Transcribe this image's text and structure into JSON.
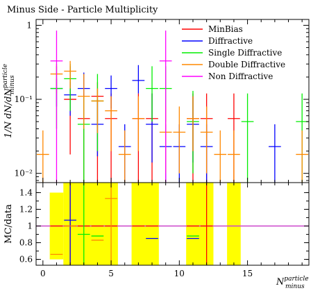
{
  "title": "Minus Side - Particle Multiplicity",
  "colors": {
    "MinBias": "#ff0000",
    "Diffractive": "#0000ff",
    "Single Diffractive": "#00ee00",
    "Double Diffractive": "#ff8800",
    "Non Diffractive": "#ff00ff",
    "band": "#ffff00",
    "reference": "#cc44cc"
  },
  "chart_data": [
    {
      "type": "scatter",
      "panel": "main",
      "ylabel": "1/N dN/dN_minus^particle",
      "ylabel_parts": {
        "main": "1/N dN/dN",
        "sup": "particle",
        "sub": "minus"
      },
      "yscale": "log",
      "xlim": [
        -0.5,
        19.5
      ],
      "ylim": [
        0.0075,
        1.2
      ],
      "yticks": [
        {
          "value": 0.01,
          "label": "10⁻²"
        },
        {
          "value": 0.1,
          "label": "10⁻¹"
        },
        {
          "value": 1,
          "label": "1"
        }
      ],
      "legend_position": "top-right",
      "series": [
        {
          "name": "MinBias",
          "points": [
            {
              "x": 2,
              "y": 0.1,
              "lo": 0.018,
              "hi": 0.28
            },
            {
              "x": 3,
              "y": 0.055,
              "lo": 0.0075,
              "hi": 0.12
            },
            {
              "x": 4,
              "y": 0.11,
              "lo": 0.0075,
              "hi": 0.17
            },
            {
              "x": 5,
              "y": 0.055,
              "lo": 0.0075,
              "hi": 0.12
            },
            {
              "x": 7,
              "y": 0.055,
              "lo": 0.0075,
              "hi": 0.12
            },
            {
              "x": 8,
              "y": 0.055,
              "lo": 0.0075,
              "hi": 0.12
            },
            {
              "x": 11,
              "y": 0.055,
              "lo": 0.0075,
              "hi": 0.12
            },
            {
              "x": 12,
              "y": 0.055,
              "lo": 0.0075,
              "hi": 0.12
            },
            {
              "x": 14,
              "y": 0.055,
              "lo": 0.0075,
              "hi": 0.12
            }
          ]
        },
        {
          "name": "Diffractive",
          "points": [
            {
              "x": 1,
              "y": 0.14,
              "lo": 0.08,
              "hi": 0.19
            },
            {
              "x": 2,
              "y": 0.115,
              "lo": 0.06,
              "hi": 0.17
            },
            {
              "x": 3,
              "y": 0.14,
              "lo": 0.04,
              "hi": 0.23
            },
            {
              "x": 4,
              "y": 0.046,
              "lo": 0.017,
              "hi": 0.1
            },
            {
              "x": 5,
              "y": 0.14,
              "lo": 0.075,
              "hi": 0.21
            },
            {
              "x": 6,
              "y": 0.023,
              "lo": 0.0075,
              "hi": 0.046
            },
            {
              "x": 7,
              "y": 0.18,
              "lo": 0.12,
              "hi": 0.29
            },
            {
              "x": 8,
              "y": 0.046,
              "lo": 0.014,
              "hi": 0.12
            },
            {
              "x": 9,
              "y": 0.023,
              "lo": 0.0075,
              "hi": 0.046
            },
            {
              "x": 10,
              "y": 0.023,
              "lo": 0.0075,
              "hi": 0.046
            },
            {
              "x": 11,
              "y": 0.046,
              "lo": 0.014,
              "hi": 0.11
            },
            {
              "x": 12,
              "y": 0.023,
              "lo": 0.0075,
              "hi": 0.046
            },
            {
              "x": 17,
              "y": 0.023,
              "lo": 0.0075,
              "hi": 0.046
            }
          ]
        },
        {
          "name": "Single Diffractive",
          "points": [
            {
              "x": 1,
              "y": 0.14,
              "lo": 0.04,
              "hi": 0.28
            },
            {
              "x": 2,
              "y": 0.19,
              "lo": 0.07,
              "hi": 0.3
            },
            {
              "x": 3,
              "y": 0.046,
              "lo": 0.0075,
              "hi": 0.11
            },
            {
              "x": 4,
              "y": 0.095,
              "lo": 0.02,
              "hi": 0.22
            },
            {
              "x": 8,
              "y": 0.14,
              "lo": 0.05,
              "hi": 0.28
            },
            {
              "x": 9,
              "y": 0.14,
              "lo": 0.05,
              "hi": 0.28
            },
            {
              "x": 11,
              "y": 0.05,
              "lo": 0.01,
              "hi": 0.13
            },
            {
              "x": 15,
              "y": 0.05,
              "lo": 0.0075,
              "hi": 0.12
            },
            {
              "x": 19,
              "y": 0.05,
              "lo": 0.0075,
              "hi": 0.12
            }
          ]
        },
        {
          "name": "Double Diffractive",
          "points": [
            {
              "x": 0,
              "y": 0.018,
              "lo": 0.0075,
              "hi": 0.038
            },
            {
              "x": 1,
              "y": 0.22,
              "lo": 0.12,
              "hi": 0.3
            },
            {
              "x": 2,
              "y": 0.24,
              "lo": 0.14,
              "hi": 0.33
            },
            {
              "x": 3,
              "y": 0.11,
              "lo": 0.04,
              "hi": 0.22
            },
            {
              "x": 4,
              "y": 0.095,
              "lo": 0.035,
              "hi": 0.14
            },
            {
              "x": 5,
              "y": 0.07,
              "lo": 0.02,
              "hi": 0.11
            },
            {
              "x": 6,
              "y": 0.018,
              "lo": 0.0075,
              "hi": 0.038
            },
            {
              "x": 7,
              "y": 0.055,
              "lo": 0.02,
              "hi": 0.11
            },
            {
              "x": 9,
              "y": 0.036,
              "lo": 0.01,
              "hi": 0.08
            },
            {
              "x": 10,
              "y": 0.036,
              "lo": 0.01,
              "hi": 0.08
            },
            {
              "x": 11,
              "y": 0.055,
              "lo": 0.02,
              "hi": 0.11
            },
            {
              "x": 12,
              "y": 0.036,
              "lo": 0.01,
              "hi": 0.08
            },
            {
              "x": 13,
              "y": 0.018,
              "lo": 0.0075,
              "hi": 0.038
            },
            {
              "x": 14,
              "y": 0.018,
              "lo": 0.0075,
              "hi": 0.038
            },
            {
              "x": 19,
              "y": 0.018,
              "lo": 0.0075,
              "hi": 0.038
            }
          ]
        },
        {
          "name": "Non Diffractive",
          "points": [
            {
              "x": 1,
              "y": 0.33,
              "lo": 0.0075,
              "hi": 0.85
            },
            {
              "x": 9,
              "y": 0.33,
              "lo": 0.0075,
              "hi": 0.85
            }
          ]
        }
      ]
    },
    {
      "type": "scatter",
      "panel": "ratio",
      "ylabel": "MC/data",
      "xlabel": "N_minus^particle",
      "xlabel_parts": {
        "main": "N",
        "sup": "particle",
        "sub": "minus"
      },
      "xlim": [
        -0.5,
        19.5
      ],
      "ylim": [
        0.53,
        1.52
      ],
      "xticks": [
        0,
        5,
        10,
        15
      ],
      "yticks": [
        0.6,
        0.8,
        1,
        1.2,
        1.4
      ],
      "reference_line": 1,
      "bands": [
        {
          "x0": 0.5,
          "x1": 1.5,
          "lo": 0.6,
          "hi": 1.4
        },
        {
          "x0": 1.5,
          "x1": 5.5,
          "lo": 0.53,
          "hi": 1.52
        },
        {
          "x0": 6.5,
          "x1": 8.5,
          "lo": 0.53,
          "hi": 1.52
        },
        {
          "x0": 10.5,
          "x1": 12.5,
          "lo": 0.53,
          "hi": 1.52
        },
        {
          "x0": 13.5,
          "x1": 14.5,
          "lo": 0.53,
          "hi": 1.52
        }
      ],
      "series": [
        {
          "name": "MinBias",
          "points": [
            {
              "x": 1,
              "y": 1.0
            },
            {
              "x": 2,
              "y": 1.0,
              "lo": 0.53,
              "hi": 1.52
            },
            {
              "x": 3,
              "y": 1.0
            },
            {
              "x": 4,
              "y": 1.0
            },
            {
              "x": 5,
              "y": 1.0
            },
            {
              "x": 7,
              "y": 1.0
            },
            {
              "x": 8,
              "y": 1.0
            },
            {
              "x": 11,
              "y": 1.0
            },
            {
              "x": 12,
              "y": 1.0,
              "lo": 0.53,
              "hi": 1.52
            }
          ]
        },
        {
          "name": "Diffractive",
          "points": [
            {
              "x": 2,
              "y": 1.07,
              "lo": 0.53,
              "hi": 1.52
            },
            {
              "x": 8,
              "y": 0.85
            },
            {
              "x": 11,
              "y": 0.85
            }
          ]
        },
        {
          "name": "Single Diffractive",
          "points": [
            {
              "x": 3,
              "y": 0.9,
              "lo": 0.53,
              "hi": 1.52
            },
            {
              "x": 4,
              "y": 0.88
            },
            {
              "x": 11,
              "y": 0.88
            }
          ]
        },
        {
          "name": "Double Diffractive",
          "points": [
            {
              "x": 1,
              "y": 0.66
            },
            {
              "x": 2,
              "y": 1.0
            },
            {
              "x": 4,
              "y": 0.83
            },
            {
              "x": 5,
              "y": 1.33,
              "lo": 0.53,
              "hi": 1.52
            }
          ]
        }
      ]
    }
  ]
}
